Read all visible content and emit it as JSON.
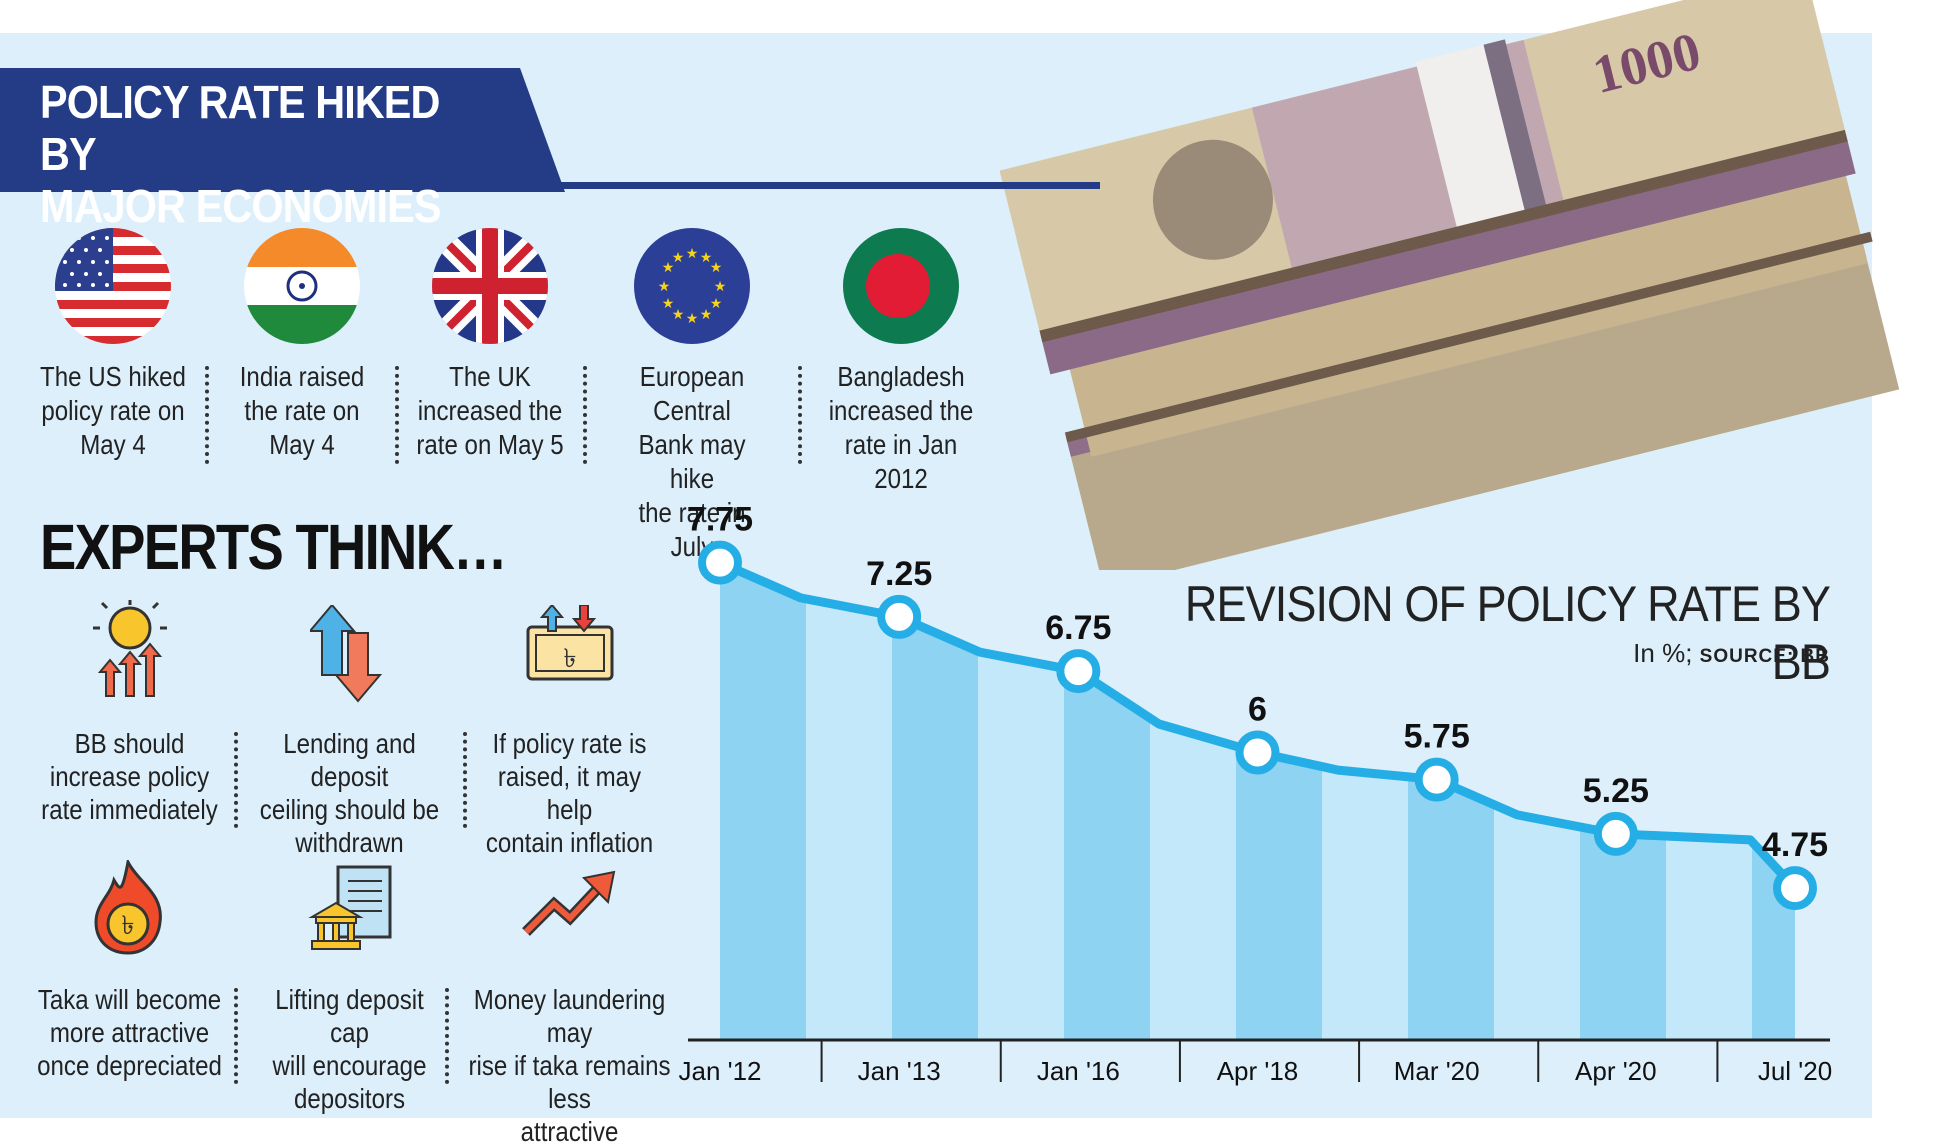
{
  "header": {
    "title_line1": "POLICY RATE HIKED BY",
    "title_line2": "MAJOR ECONOMIES"
  },
  "flags": [
    {
      "icon": "us-flag-icon",
      "caption": [
        "The US hiked",
        "policy rate on",
        "May 4"
      ]
    },
    {
      "icon": "india-flag-icon",
      "caption": [
        "India raised",
        "the rate on",
        "May 4"
      ]
    },
    {
      "icon": "uk-flag-icon",
      "caption": [
        "The UK",
        "increased the",
        "rate on May 5"
      ]
    },
    {
      "icon": "eu-flag-icon",
      "caption": [
        "European Central",
        "Bank may hike",
        "the rate in July"
      ]
    },
    {
      "icon": "bangladesh-flag-icon",
      "caption": [
        "Bangladesh",
        "increased the",
        "rate in Jan 2012"
      ]
    }
  ],
  "experts": {
    "title": "EXPERTS THINK…",
    "items": [
      {
        "icon": "sun-rising-arrows-icon",
        "caption": [
          "BB should",
          "increase policy",
          "rate immediately"
        ]
      },
      {
        "icon": "up-down-arrows-icon",
        "caption": [
          "Lending and deposit",
          "ceiling should be",
          "withdrawn"
        ]
      },
      {
        "icon": "taka-note-arrows-icon",
        "caption": [
          "If policy rate is",
          "raised, it may help",
          "contain inflation"
        ]
      },
      {
        "icon": "taka-fire-icon",
        "caption": [
          "Taka will become",
          "more attractive",
          "once depreciated"
        ]
      },
      {
        "icon": "bank-document-icon",
        "caption": [
          "Lifting deposit cap",
          "will encourage",
          "depositors"
        ]
      },
      {
        "icon": "rising-trend-arrow-icon",
        "caption": [
          "Money laundering may",
          "rise if taka remains less",
          "attractive"
        ]
      }
    ]
  },
  "chart_data": {
    "type": "line",
    "title": "REVISION OF POLICY RATE BY BB",
    "subtitle_unit": "In %;",
    "subtitle_source": "SOURCE: BB",
    "categories": [
      "Jan '12",
      "Jan '13",
      "Jan '16",
      "Apr '18",
      "Mar '20",
      "Apr '20",
      "Jul '20"
    ],
    "values": [
      7.75,
      7.25,
      6.75,
      6,
      5.75,
      5.25,
      4.75
    ],
    "value_labels": [
      "7.75",
      "7.25",
      "6.75",
      "6",
      "5.75",
      "5.25",
      "4.75"
    ],
    "grid": false,
    "colors": {
      "line": "#25aee6",
      "fill_dark": "#8fd3f3",
      "fill_light": "#c3e8f9"
    }
  },
  "colors": {
    "banner": "#243c86",
    "panel": "#dceffb"
  }
}
